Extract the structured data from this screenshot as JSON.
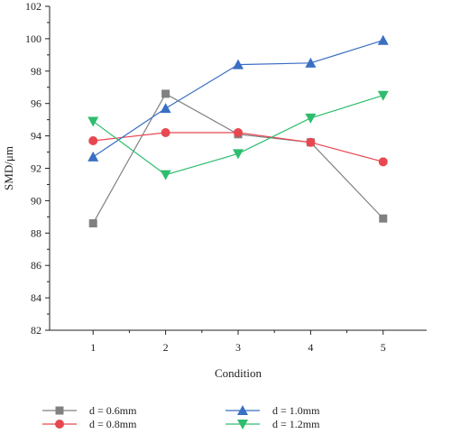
{
  "chart_data": {
    "type": "line",
    "title": "",
    "xlabel": "Condition",
    "ylabel": "SMD/μm",
    "x": [
      1,
      2,
      3,
      4,
      5
    ],
    "xlim": [
      0.4,
      5.6
    ],
    "ylim": [
      82,
      102
    ],
    "yticks": [
      82,
      84,
      86,
      88,
      90,
      92,
      94,
      96,
      98,
      100,
      102
    ],
    "xticks": [
      1,
      2,
      3,
      4,
      5
    ],
    "grid": false,
    "legend_position": "bottom",
    "series": [
      {
        "name": "d = 0.6mm",
        "values": [
          88.6,
          96.6,
          94.1,
          93.6,
          88.9
        ],
        "color": "#808080",
        "marker": "square"
      },
      {
        "name": "d = 0.8mm",
        "values": [
          93.7,
          94.2,
          94.2,
          93.6,
          92.4
        ],
        "color": "#e8474f",
        "marker": "circle"
      },
      {
        "name": "d = 1.0mm",
        "values": [
          92.7,
          95.7,
          98.4,
          98.5,
          99.9
        ],
        "color": "#3a6fc4",
        "marker": "triangle-up"
      },
      {
        "name": "d = 1.2mm",
        "values": [
          94.9,
          91.6,
          92.9,
          95.1,
          96.5
        ],
        "color": "#2ebd6e",
        "marker": "triangle-down"
      }
    ]
  }
}
